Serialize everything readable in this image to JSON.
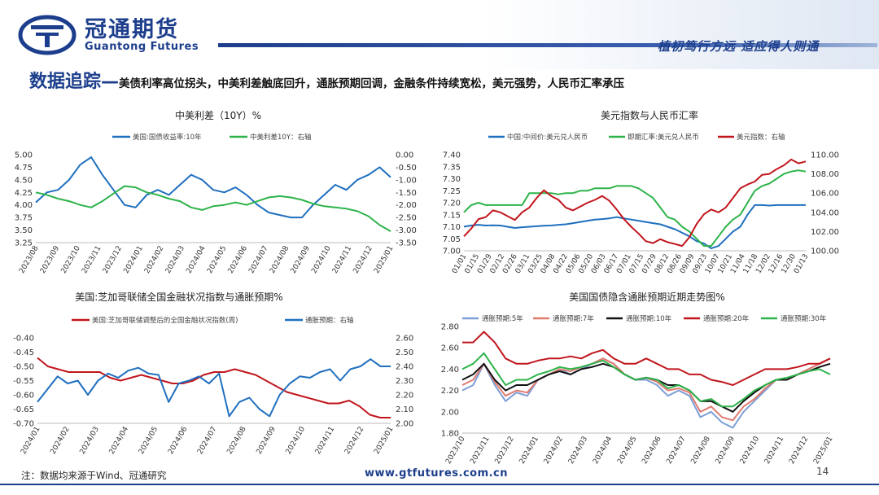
{
  "header": {
    "brand_cn": "冠通期货",
    "brand_en": "Guantong Futures",
    "slogan": "植初笃行方远  适应得人则通"
  },
  "title": {
    "main": "数据追踪—",
    "sub": "美债利率高位拐头，中美利差触底回升，通胀预期回调，金融条件持续宽松，美元强势，人民币汇率承压"
  },
  "footer": {
    "note": "注：数据均来源于Wind、冠通研究",
    "url": "www.gtfutures.com.cn",
    "page": "14"
  },
  "colors": {
    "brand": "#1c3e8c",
    "blue": "#1f6fbf",
    "green": "#2db34a",
    "red": "#c0161c",
    "black": "#111111",
    "lightblue": "#7c9fd6",
    "salmon": "#e07b70"
  },
  "chart_data": [
    {
      "type": "line",
      "title": "中美利差（10Y）%",
      "x_ticks": [
        "2023/08",
        "2023/09",
        "2023/10",
        "2023/11",
        "2023/12",
        "2024/01",
        "2024/02",
        "2024/03",
        "2024/04",
        "2024/05",
        "2024/06",
        "2024/07",
        "2024/08",
        "2024/09",
        "2024/10",
        "2024/11",
        "2024/12",
        "2025/01"
      ],
      "y_left": {
        "ticks": [
          "5.00",
          "4.75",
          "4.50",
          "4.25",
          "4.00",
          "3.75",
          "3.50",
          "3.25"
        ],
        "range": [
          3.25,
          5.0
        ]
      },
      "y_right": {
        "ticks": [
          "0.00",
          "-0.50",
          "-1.00",
          "-1.50",
          "-2.00",
          "-2.50",
          "-3.00",
          "-3.50"
        ],
        "range": [
          -3.5,
          0.0
        ]
      },
      "series": [
        {
          "name": "美国:国债收益率:10年",
          "axis": "left",
          "color": "#1f6fbf",
          "values": [
            4.05,
            4.25,
            4.3,
            4.5,
            4.8,
            4.95,
            4.6,
            4.3,
            4.0,
            3.95,
            4.2,
            4.3,
            4.2,
            4.4,
            4.6,
            4.5,
            4.3,
            4.25,
            4.35,
            4.2,
            4.0,
            3.85,
            3.8,
            3.75,
            3.75,
            4.0,
            4.2,
            4.4,
            4.3,
            4.5,
            4.6,
            4.75,
            4.55
          ]
        },
        {
          "name": "中美利差10Y：右轴",
          "axis": "right",
          "color": "#2db34a",
          "values": [
            -1.5,
            -1.6,
            -1.75,
            -1.85,
            -2.0,
            -2.1,
            -1.85,
            -1.55,
            -1.25,
            -1.3,
            -1.5,
            -1.6,
            -1.75,
            -1.85,
            -2.1,
            -2.2,
            -2.05,
            -2.0,
            -1.9,
            -2.0,
            -1.85,
            -1.7,
            -1.65,
            -1.7,
            -1.8,
            -1.95,
            -2.05,
            -2.1,
            -2.15,
            -2.25,
            -2.45,
            -2.8,
            -3.05
          ]
        }
      ]
    },
    {
      "type": "line",
      "title": "美元指数与人民币汇率",
      "x_ticks": [
        "01/01",
        "01/15",
        "01/29",
        "02/12",
        "02/26",
        "03/11",
        "03/25",
        "04/08",
        "04/22",
        "05/06",
        "05/20",
        "06/03",
        "06/17",
        "07/01",
        "07/15",
        "07/29",
        "08/12",
        "08/26",
        "09/09",
        "09/23",
        "10/07",
        "10/21",
        "11/04",
        "11/18",
        "12/02",
        "12/16",
        "12/30",
        "01/13"
      ],
      "y_left": {
        "ticks": [
          "7.40",
          "7.35",
          "7.30",
          "7.25",
          "7.20",
          "7.15",
          "7.10",
          "7.05",
          "7.00"
        ],
        "range": [
          7.0,
          7.4
        ]
      },
      "y_right": {
        "ticks": [
          "110.00",
          "108.00",
          "106.00",
          "104.00",
          "102.00",
          "100.00"
        ],
        "range": [
          100.0,
          110.0
        ]
      },
      "series": [
        {
          "name": "中国:中间价:美元兑人民币",
          "axis": "left",
          "color": "#1f6fbf",
          "values": [
            7.1,
            7.105,
            7.108,
            7.105,
            7.106,
            7.105,
            7.1,
            7.095,
            7.098,
            7.1,
            7.102,
            7.104,
            7.105,
            7.108,
            7.11,
            7.115,
            7.12,
            7.125,
            7.13,
            7.132,
            7.135,
            7.14,
            7.135,
            7.13,
            7.125,
            7.12,
            7.115,
            7.11,
            7.1,
            7.09,
            7.075,
            7.06,
            7.04,
            7.03,
            7.01,
            7.02,
            7.05,
            7.08,
            7.1,
            7.15,
            7.19,
            7.19,
            7.188,
            7.19,
            7.19,
            7.19,
            7.19,
            7.19
          ]
        },
        {
          "name": "即期汇率:美元兑人民币",
          "axis": "left",
          "color": "#2db34a",
          "values": [
            7.16,
            7.19,
            7.2,
            7.19,
            7.19,
            7.19,
            7.19,
            7.19,
            7.19,
            7.24,
            7.24,
            7.24,
            7.24,
            7.235,
            7.24,
            7.24,
            7.25,
            7.25,
            7.26,
            7.26,
            7.26,
            7.27,
            7.27,
            7.27,
            7.26,
            7.24,
            7.22,
            7.18,
            7.14,
            7.13,
            7.1,
            7.08,
            7.05,
            7.02,
            7.02,
            7.06,
            7.1,
            7.13,
            7.15,
            7.2,
            7.25,
            7.27,
            7.28,
            7.3,
            7.32,
            7.33,
            7.335,
            7.33
          ]
        },
        {
          "name": "美元指数：右轴",
          "axis": "right",
          "color": "#c0161c",
          "values": [
            101.5,
            102.3,
            103.3,
            103.5,
            104.2,
            104.0,
            103.6,
            103.2,
            104.0,
            104.5,
            105.5,
            106.3,
            105.7,
            105.3,
            104.5,
            104.2,
            104.6,
            105.0,
            105.3,
            105.7,
            105.2,
            104.3,
            103.3,
            102.5,
            101.8,
            101.0,
            100.8,
            101.2,
            100.9,
            100.7,
            100.5,
            101.4,
            102.8,
            103.8,
            104.3,
            104.0,
            104.5,
            105.5,
            106.5,
            106.9,
            107.2,
            107.9,
            108.0,
            108.5,
            108.9,
            109.5,
            109.1,
            109.3
          ]
        }
      ]
    },
    {
      "type": "line",
      "title": "美国:芝加哥联储全国金融状况指数与通胀预期%",
      "x_ticks": [
        "2024/01",
        "2024/02",
        "2024/03",
        "2024/04",
        "2024/05",
        "2024/06",
        "2024/07",
        "2024/08",
        "2024/09",
        "2024/10",
        "2024/11",
        "2024/12",
        "2025/01"
      ],
      "y_left": {
        "ticks": [
          "-0.40",
          "-0.45",
          "-0.50",
          "-0.55",
          "-0.60",
          "-0.65",
          "-0.70"
        ],
        "range": [
          -0.7,
          -0.4
        ]
      },
      "y_right": {
        "ticks": [
          "2.60",
          "2.50",
          "2.40",
          "2.30",
          "2.20",
          "2.10",
          "2.00"
        ],
        "range": [
          2.0,
          2.6
        ]
      },
      "series": [
        {
          "name": "美国:芝加哥联储调整后的全国金融状况指数(周)",
          "axis": "left",
          "color": "#c0161c",
          "values": [
            -0.47,
            -0.5,
            -0.51,
            -0.52,
            -0.52,
            -0.52,
            -0.52,
            -0.54,
            -0.55,
            -0.54,
            -0.53,
            -0.54,
            -0.55,
            -0.56,
            -0.56,
            -0.55,
            -0.53,
            -0.52,
            -0.52,
            -0.51,
            -0.52,
            -0.53,
            -0.55,
            -0.57,
            -0.59,
            -0.6,
            -0.61,
            -0.62,
            -0.63,
            -0.63,
            -0.62,
            -0.64,
            -0.67,
            -0.68,
            -0.68
          ]
        },
        {
          "name": "通胀预期：右轴",
          "axis": "right",
          "color": "#1f6fbf",
          "values": [
            2.15,
            2.24,
            2.33,
            2.28,
            2.3,
            2.2,
            2.3,
            2.35,
            2.32,
            2.37,
            2.39,
            2.35,
            2.34,
            2.15,
            2.28,
            2.3,
            2.33,
            2.28,
            2.35,
            2.05,
            2.15,
            2.18,
            2.1,
            2.05,
            2.2,
            2.28,
            2.33,
            2.32,
            2.36,
            2.38,
            2.3,
            2.38,
            2.4,
            2.45,
            2.4,
            2.4
          ]
        }
      ]
    },
    {
      "type": "line",
      "title": "美国国债隐含通胀预期近期走势图%",
      "x_ticks": [
        "2023/10",
        "2023/11",
        "2023/12",
        "2024/01",
        "2024/02",
        "2024/03",
        "2024/04",
        "2024/05",
        "2024/06",
        "2024/07",
        "2024/08",
        "2024/09",
        "2024/10",
        "2024/11",
        "2024/12",
        "2025/01"
      ],
      "y_left": {
        "ticks": [
          "2.80",
          "2.60",
          "2.40",
          "2.20",
          "2.00",
          "1.80"
        ],
        "range": [
          1.8,
          2.8
        ]
      },
      "series": [
        {
          "name": "通胀预期:5年",
          "color": "#7c9fd6",
          "values": [
            2.2,
            2.25,
            2.45,
            2.25,
            2.1,
            2.18,
            2.15,
            2.3,
            2.35,
            2.4,
            2.35,
            2.4,
            2.45,
            2.5,
            2.45,
            2.35,
            2.3,
            2.3,
            2.25,
            2.15,
            2.2,
            2.15,
            1.95,
            2.0,
            1.9,
            1.85,
            2.0,
            2.1,
            2.2,
            2.3,
            2.3,
            2.35,
            2.4,
            2.45,
            2.5
          ]
        },
        {
          "name": "通胀预期:7年",
          "color": "#e07b70",
          "values": [
            2.25,
            2.3,
            2.45,
            2.28,
            2.15,
            2.2,
            2.18,
            2.3,
            2.35,
            2.4,
            2.38,
            2.42,
            2.45,
            2.5,
            2.45,
            2.35,
            2.3,
            2.32,
            2.28,
            2.2,
            2.22,
            2.18,
            2.0,
            2.05,
            1.95,
            1.92,
            2.05,
            2.12,
            2.22,
            2.3,
            2.3,
            2.35,
            2.4,
            2.45,
            2.5
          ]
        },
        {
          "name": "通胀预期:10年",
          "color": "#111111",
          "values": [
            2.3,
            2.35,
            2.45,
            2.3,
            2.2,
            2.25,
            2.25,
            2.3,
            2.35,
            2.38,
            2.35,
            2.4,
            2.42,
            2.45,
            2.42,
            2.35,
            2.3,
            2.32,
            2.3,
            2.25,
            2.25,
            2.2,
            2.1,
            2.1,
            2.05,
            2.0,
            2.1,
            2.18,
            2.25,
            2.3,
            2.3,
            2.35,
            2.38,
            2.42,
            2.45
          ]
        },
        {
          "name": "通胀预期:20年",
          "color": "#c0161c",
          "values": [
            2.65,
            2.65,
            2.75,
            2.65,
            2.5,
            2.45,
            2.45,
            2.48,
            2.5,
            2.5,
            2.52,
            2.5,
            2.55,
            2.58,
            2.5,
            2.45,
            2.45,
            2.5,
            2.45,
            2.4,
            2.4,
            2.35,
            2.35,
            2.3,
            2.28,
            2.25,
            2.3,
            2.35,
            2.4,
            2.4,
            2.4,
            2.42,
            2.45,
            2.45,
            2.5
          ]
        },
        {
          "name": "通胀预期:30年",
          "color": "#2db34a",
          "values": [
            2.4,
            2.45,
            2.55,
            2.4,
            2.25,
            2.3,
            2.3,
            2.35,
            2.38,
            2.42,
            2.4,
            2.42,
            2.45,
            2.48,
            2.42,
            2.35,
            2.3,
            2.32,
            2.3,
            2.22,
            2.25,
            2.2,
            2.1,
            2.12,
            2.05,
            2.05,
            2.12,
            2.2,
            2.25,
            2.3,
            2.32,
            2.35,
            2.38,
            2.4,
            2.35
          ]
        }
      ]
    }
  ]
}
